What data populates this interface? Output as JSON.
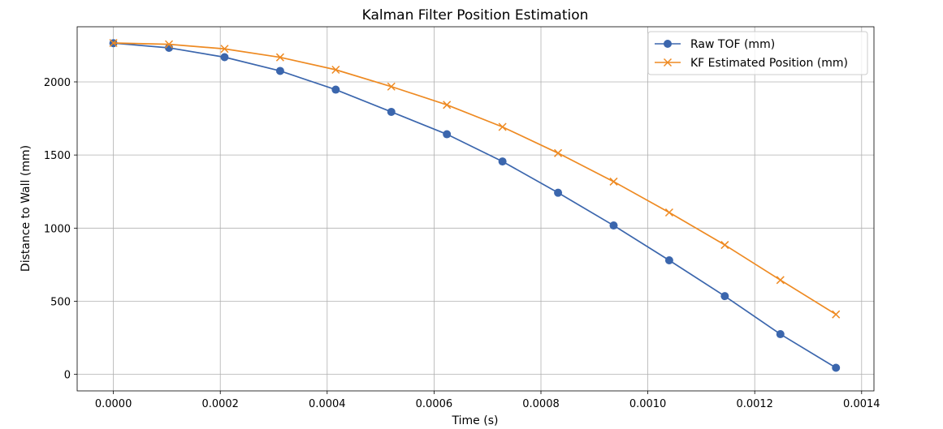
{
  "chart_data": {
    "type": "line",
    "title": "Kalman Filter Position Estimation",
    "xlabel": "Time (s)",
    "ylabel": "Distance to Wall (mm)",
    "xlim": [
      -6.78e-05,
      0.0014231
    ],
    "ylim": [
      -113,
      2377
    ],
    "xticks": [
      0.0,
      0.0002,
      0.0004,
      0.0006,
      0.0008,
      0.001,
      0.0012,
      0.0014
    ],
    "xtick_labels": [
      "0.0000",
      "0.0002",
      "0.0004",
      "0.0006",
      "0.0008",
      "0.0010",
      "0.0012",
      "0.0014"
    ],
    "yticks": [
      0,
      500,
      1000,
      1500,
      2000
    ],
    "ytick_labels": [
      "0",
      "500",
      "1000",
      "1500",
      "2000"
    ],
    "grid": true,
    "legend_position": "top-right",
    "x": [
      0.0,
      0.000104,
      0.000208,
      0.000312,
      0.000416,
      0.00052,
      0.000624,
      0.000728,
      0.000832,
      0.000936,
      0.00104,
      0.001144,
      0.001248,
      0.001352
    ],
    "series": [
      {
        "name": "Raw TOF (mm)",
        "color": "#3b66ad",
        "marker": "circle",
        "values": [
          2265,
          2233,
          2169,
          2075,
          1947,
          1795,
          1642,
          1456,
          1242,
          1018,
          780,
          535,
          275,
          45
        ]
      },
      {
        "name": "KF Estimated Position (mm)",
        "color": "#ee8a22",
        "marker": "x",
        "values": [
          2266,
          2257,
          2226,
          2168,
          2083,
          1968,
          1843,
          1692,
          1513,
          1318,
          1107,
          885,
          645,
          410
        ]
      }
    ]
  }
}
